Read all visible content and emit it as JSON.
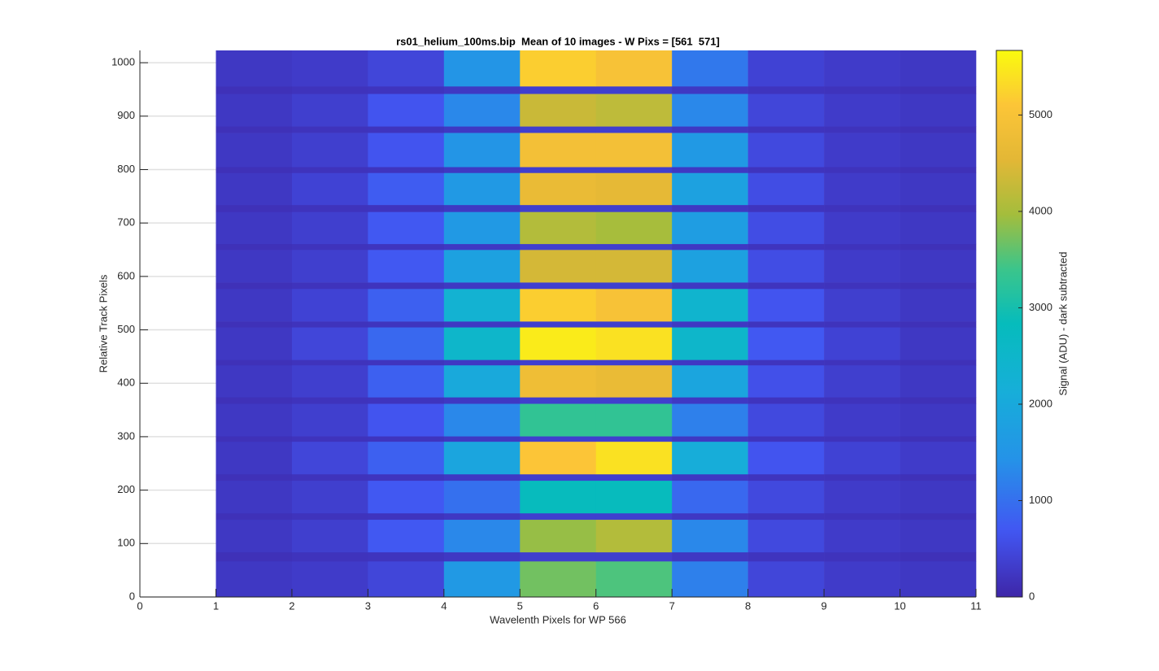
{
  "chart_data": {
    "type": "heatmap",
    "title": "rs01_helium_100ms.bip  Mean of 10 images - W Pixs = [561  571]",
    "x_label": "Wavelenth Pixels for WP 566",
    "y_label": "Relative Track Pixels",
    "colorbar_label": "Signal (ADU) - dark subtracted",
    "colormap": "parula",
    "grid": true,
    "xlim": [
      0,
      11
    ],
    "xticks": [
      0,
      1,
      2,
      3,
      4,
      5,
      6,
      7,
      8,
      9,
      10,
      11
    ],
    "ylim": [
      0,
      1023
    ],
    "yticks": [
      0,
      100,
      200,
      300,
      400,
      500,
      600,
      700,
      800,
      900,
      1000
    ],
    "clim": [
      0,
      5670
    ],
    "cticks": [
      0,
      1000,
      2000,
      3000,
      4000,
      5000
    ],
    "x_edges": [
      1,
      2,
      3,
      4,
      5,
      6,
      7,
      8,
      9,
      10,
      11
    ],
    "y_edges": [
      0,
      67,
      84,
      145,
      157,
      218,
      230,
      291,
      301,
      362,
      374,
      434,
      444,
      505,
      516,
      577,
      589,
      650,
      661,
      721,
      734,
      794,
      805,
      869,
      881,
      942,
      956,
      1023
    ],
    "z": [
      [
        250,
        300,
        450,
        1600,
        3700,
        3500,
        1200,
        450,
        300,
        250
      ],
      [
        150,
        180,
        200,
        250,
        350,
        350,
        250,
        200,
        180,
        150
      ],
      [
        250,
        350,
        700,
        1300,
        3900,
        4100,
        1300,
        500,
        300,
        250
      ],
      [
        150,
        180,
        200,
        250,
        350,
        350,
        250,
        200,
        180,
        150
      ],
      [
        250,
        350,
        700,
        1000,
        2800,
        2800,
        900,
        500,
        300,
        250
      ],
      [
        150,
        180,
        200,
        250,
        350,
        350,
        250,
        200,
        180,
        150
      ],
      [
        250,
        450,
        800,
        1900,
        5100,
        5400,
        2100,
        650,
        400,
        300
      ],
      [
        150,
        180,
        200,
        250,
        350,
        350,
        250,
        200,
        180,
        150
      ],
      [
        250,
        350,
        650,
        1300,
        3300,
        3300,
        1200,
        500,
        300,
        250
      ],
      [
        150,
        180,
        200,
        250,
        350,
        350,
        250,
        200,
        180,
        150
      ],
      [
        250,
        350,
        800,
        2000,
        4800,
        4700,
        1900,
        600,
        350,
        250
      ],
      [
        150,
        180,
        200,
        250,
        350,
        350,
        250,
        200,
        180,
        150
      ],
      [
        250,
        450,
        900,
        2500,
        5500,
        5400,
        2500,
        700,
        400,
        250
      ],
      [
        150,
        180,
        200,
        250,
        350,
        350,
        250,
        200,
        180,
        150
      ],
      [
        250,
        400,
        800,
        2300,
        5200,
        5000,
        2400,
        650,
        350,
        250
      ],
      [
        150,
        180,
        200,
        250,
        350,
        350,
        250,
        200,
        180,
        150
      ],
      [
        250,
        350,
        700,
        1800,
        4400,
        4400,
        1800,
        550,
        300,
        250
      ],
      [
        150,
        180,
        200,
        250,
        350,
        350,
        250,
        200,
        180,
        150
      ],
      [
        250,
        350,
        700,
        1600,
        4100,
        4000,
        1700,
        550,
        300,
        250
      ],
      [
        150,
        180,
        200,
        250,
        350,
        350,
        250,
        200,
        180,
        150
      ],
      [
        250,
        400,
        750,
        1600,
        4700,
        4600,
        1800,
        550,
        300,
        250
      ],
      [
        150,
        180,
        200,
        250,
        350,
        350,
        250,
        200,
        180,
        150
      ],
      [
        250,
        350,
        650,
        1500,
        4900,
        4900,
        1600,
        500,
        300,
        250
      ],
      [
        150,
        180,
        200,
        250,
        350,
        350,
        250,
        200,
        180,
        150
      ],
      [
        250,
        350,
        650,
        1300,
        4300,
        4200,
        1300,
        450,
        300,
        250
      ],
      [
        150,
        180,
        200,
        250,
        350,
        350,
        250,
        200,
        180,
        150
      ],
      [
        250,
        300,
        450,
        1500,
        5200,
        5000,
        1100,
        400,
        300,
        250
      ]
    ]
  }
}
